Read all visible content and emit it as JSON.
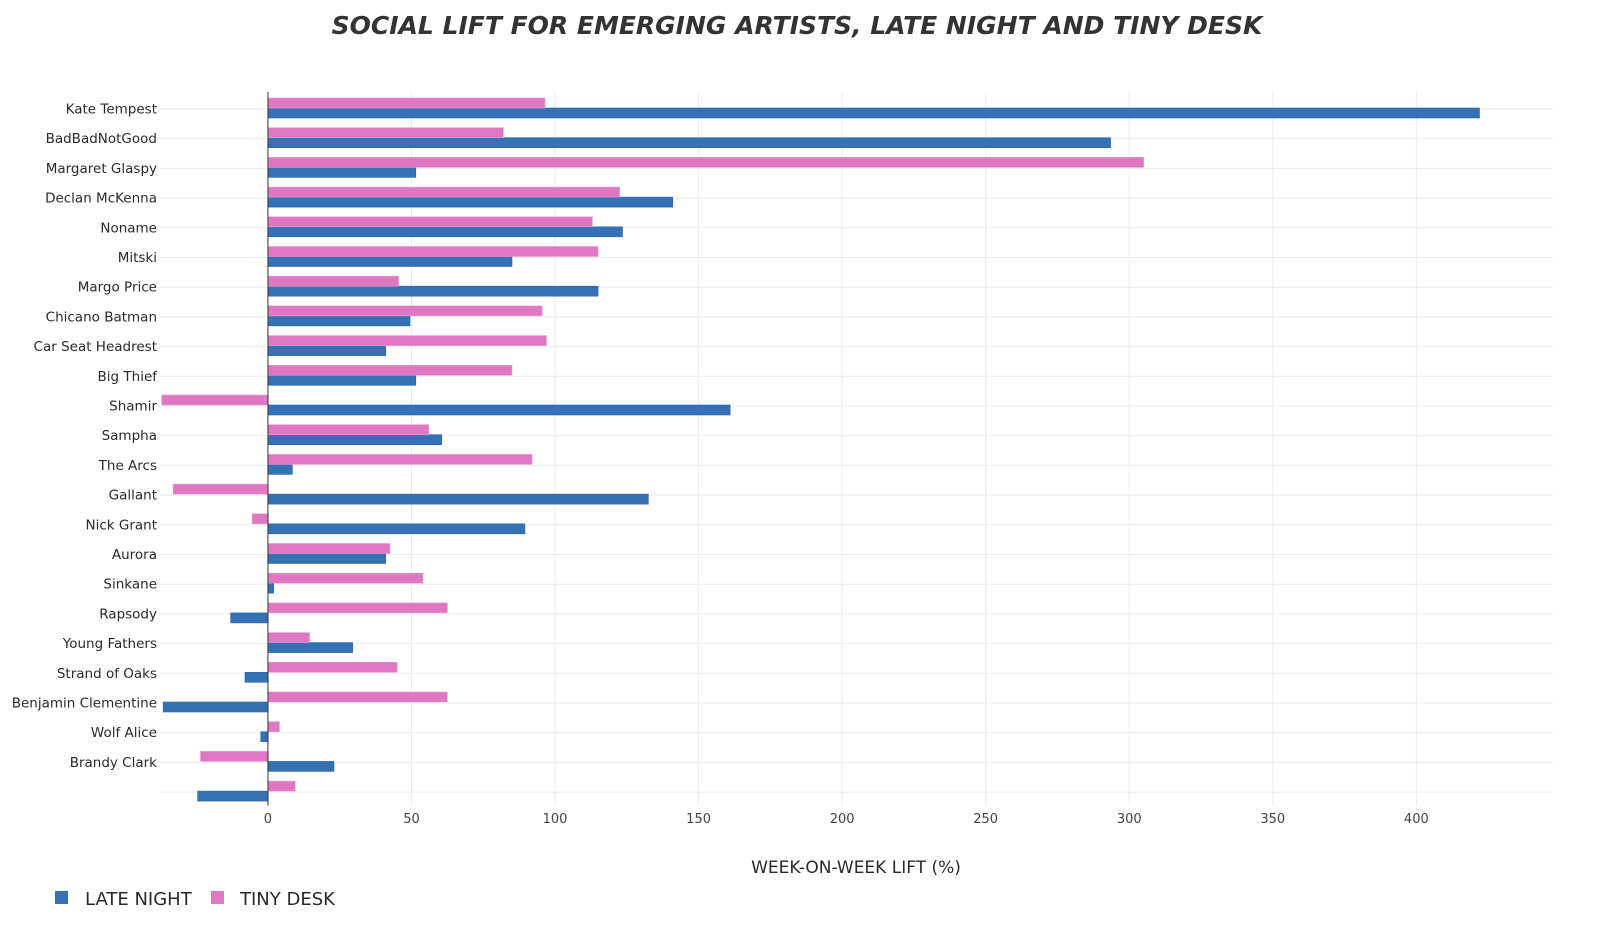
{
  "chart_data": {
    "type": "bar",
    "orientation": "horizontal",
    "title": "SOCIAL LIFT FOR EMERGING ARTISTS, LATE NIGHT AND TINY DESK",
    "xlabel": "WEEK-ON-WEEK LIFT (%)",
    "ylabel": "",
    "xlim": [
      -37.6,
      447.6
    ],
    "xticks": [
      0,
      50,
      100,
      150,
      200,
      250,
      300,
      350,
      400
    ],
    "grid": true,
    "legend_position": "bottom-left",
    "categories": [
      "Kate Tempest",
      "BadBadNotGood",
      "Margaret Glaspy",
      "Declan McKenna",
      "Noname",
      "Mitski",
      "Margo Price",
      "Chicano Batman",
      "Car Seat Headrest",
      "Big Thief",
      "Shamir",
      "Sampha",
      "The Arcs",
      "Gallant",
      "Nick Grant",
      "Aurora",
      "Sinkane",
      "Rapsody",
      "Young Fathers",
      "Strand of Oaks",
      "Benjamin Clementine",
      "Wolf Alice",
      "Brandy Clark",
      ""
    ],
    "series": [
      {
        "name": "LATE NIGHT",
        "color": "#3571b5",
        "values": [
          422,
          293.5,
          51.5,
          141,
          123.5,
          85,
          115,
          49.5,
          41,
          51.5,
          161,
          60.5,
          8.5,
          132.5,
          89.5,
          41,
          2,
          -13,
          29.5,
          -8,
          -36.5,
          -2.5,
          23,
          -24.5
        ]
      },
      {
        "name": "TINY DESK",
        "color": "#e077c3",
        "values": [
          96.5,
          82,
          305,
          122.5,
          113,
          115,
          45.5,
          95.5,
          97,
          85,
          -37,
          56,
          92,
          -33,
          -5.5,
          42.5,
          54,
          62.5,
          14.5,
          45,
          62.5,
          4,
          -23.5,
          9.5
        ]
      }
    ]
  }
}
